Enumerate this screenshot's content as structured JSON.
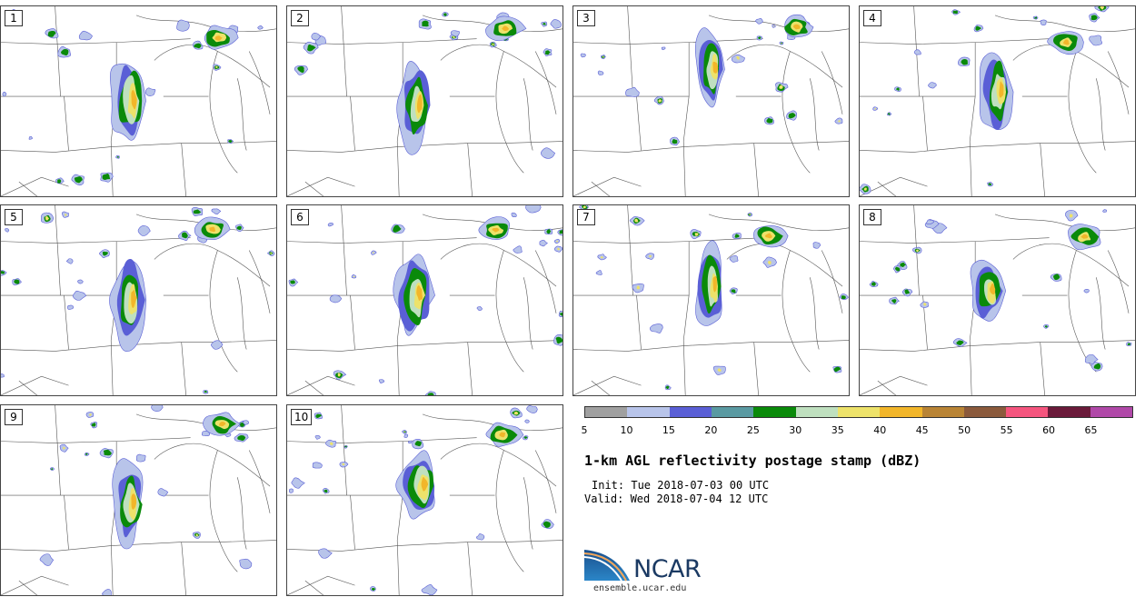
{
  "panels": [
    {
      "label": "1"
    },
    {
      "label": "2"
    },
    {
      "label": "3"
    },
    {
      "label": "4"
    },
    {
      "label": "5"
    },
    {
      "label": "6"
    },
    {
      "label": "7"
    },
    {
      "label": "8"
    },
    {
      "label": "9"
    },
    {
      "label": "10"
    }
  ],
  "colorbar": {
    "colors": [
      "#a0a0a0",
      "#b8c4ea",
      "#5a5fd6",
      "#5a9aa2",
      "#0a8a0a",
      "#bfe0bf",
      "#ede26a",
      "#f2b62a",
      "#b98435",
      "#8b5a3c",
      "#f5557e",
      "#6a1a3a",
      "#b048a8"
    ],
    "ticks": [
      "5",
      "10",
      "15",
      "20",
      "25",
      "30",
      "35",
      "40",
      "45",
      "50",
      "55",
      "60",
      "65"
    ]
  },
  "title": "1-km AGL reflectivity postage stamp (dBZ)",
  "init": "Init: Tue 2018-07-03 00 UTC",
  "valid": "Valid: Wed 2018-07-04 12 UTC",
  "logo": {
    "name": "NCAR",
    "url": "ensemble.ucar.edu"
  }
}
